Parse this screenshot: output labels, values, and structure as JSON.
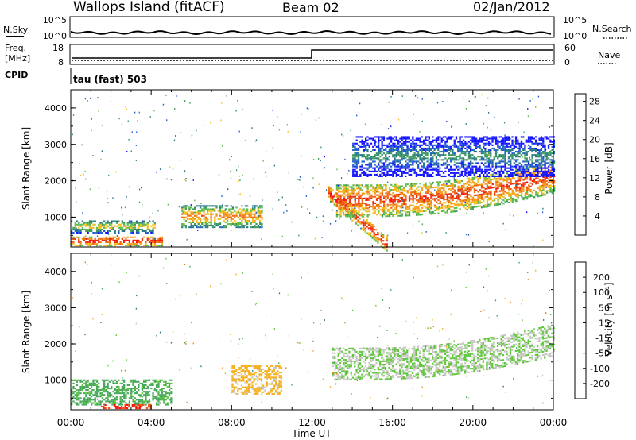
{
  "header": {
    "station": "Wallops Island (fitACF)",
    "beam": "Beam 02",
    "date": "02/Jan/2012"
  },
  "top_panels": {
    "nsky_label": "N.Sky",
    "nsearch_label": "N.Search",
    "noise_ticks_left": [
      "10^5",
      "10^0"
    ],
    "noise_ticks_right": [
      "10^5",
      "10^0"
    ],
    "freq_label_line1": "Freq.",
    "freq_label_line2": "[MHz]",
    "cpid_label": "CPID",
    "freq_ticks": [
      "18",
      "8"
    ],
    "nave_label": "Nave",
    "nave_ticks": [
      "60",
      "0"
    ],
    "mode_label": "tau (fast) 503"
  },
  "colors": {
    "power_scale": [
      "#1414ff",
      "#1e5ad2",
      "#2a7a8a",
      "#3c9a5a",
      "#5fbb4a",
      "#f0c020",
      "#f59a1a",
      "#f06a12",
      "#e8300e",
      "#ff1010"
    ],
    "velocity_scale": [
      "#1414ff",
      "#1e5ad2",
      "#2a7a8a",
      "#47a85a",
      "#5fc83a",
      "#c8c8c4",
      "#f5b020",
      "#f38012",
      "#f05010",
      "#ff1010"
    ]
  },
  "chart_data": [
    {
      "type": "heatmap",
      "name": "power",
      "ylabel": "Slant Range [km]",
      "x_ticks": [
        "00:00",
        "04:00",
        "08:00",
        "12:00",
        "16:00",
        "20:00",
        "00:00"
      ],
      "xlim_hours": [
        0,
        24
      ],
      "y_ticks": [
        1000,
        2000,
        3000,
        4000
      ],
      "ylim": [
        180,
        4500
      ],
      "colorbar": {
        "label": "Power [dB]",
        "ticks": [
          "4",
          "8",
          "12",
          "16",
          "20",
          "24",
          "28"
        ],
        "range": [
          0,
          30
        ]
      },
      "features": [
        {
          "desc": "near-range strong echoes",
          "t": [
            0,
            4.5
          ],
          "range_km": [
            200,
            450
          ],
          "power_db": 28
        },
        {
          "desc": "early band",
          "t": [
            0,
            4.2
          ],
          "range_km": [
            550,
            900
          ],
          "power_db": 18
        },
        {
          "desc": "evening band",
          "t": [
            5.5,
            9.5
          ],
          "range_km": [
            700,
            1300
          ],
          "power_db": 22
        },
        {
          "desc": "descending trace",
          "t": [
            12.8,
            15.7
          ],
          "range_km": [
            300,
            1700
          ],
          "power_db": 28
        },
        {
          "desc": "main afternoon band",
          "t": [
            13.2,
            24
          ],
          "range_km": [
            900,
            2200
          ],
          "power_db": 26
        },
        {
          "desc": "upper weak band",
          "t": [
            14,
            24
          ],
          "range_km": [
            2100,
            3200
          ],
          "power_db": 10
        }
      ]
    },
    {
      "type": "heatmap",
      "name": "velocity",
      "ylabel": "Slant Range [km]",
      "xlabel": "Time UT",
      "x_ticks": [
        "00:00",
        "04:00",
        "08:00",
        "12:00",
        "16:00",
        "20:00",
        "00:00"
      ],
      "xlim_hours": [
        0,
        24
      ],
      "y_ticks": [
        1000,
        2000,
        3000,
        4000
      ],
      "ylim": [
        180,
        4500
      ],
      "colorbar": {
        "label": "Velocity [m s⁻¹]",
        "ticks": [
          "200",
          "100",
          "50",
          "15",
          "-15",
          "-50",
          "-100",
          "-200"
        ],
        "range": [
          -250,
          250
        ]
      },
      "features": [
        {
          "desc": "ground scatter band",
          "t": [
            13,
            24
          ],
          "range_km": [
            900,
            2200
          ],
          "velocity_ms": 0
        },
        {
          "desc": "green patch",
          "t": [
            0,
            5
          ],
          "range_km": [
            300,
            1000
          ],
          "velocity_ms": 60
        },
        {
          "desc": "orange patch",
          "t": [
            8,
            10.5
          ],
          "range_km": [
            600,
            1400
          ],
          "velocity_ms": -60
        },
        {
          "desc": "red near range",
          "t": [
            1.5,
            4
          ],
          "range_km": [
            200,
            300
          ],
          "velocity_ms": -200
        }
      ]
    }
  ]
}
